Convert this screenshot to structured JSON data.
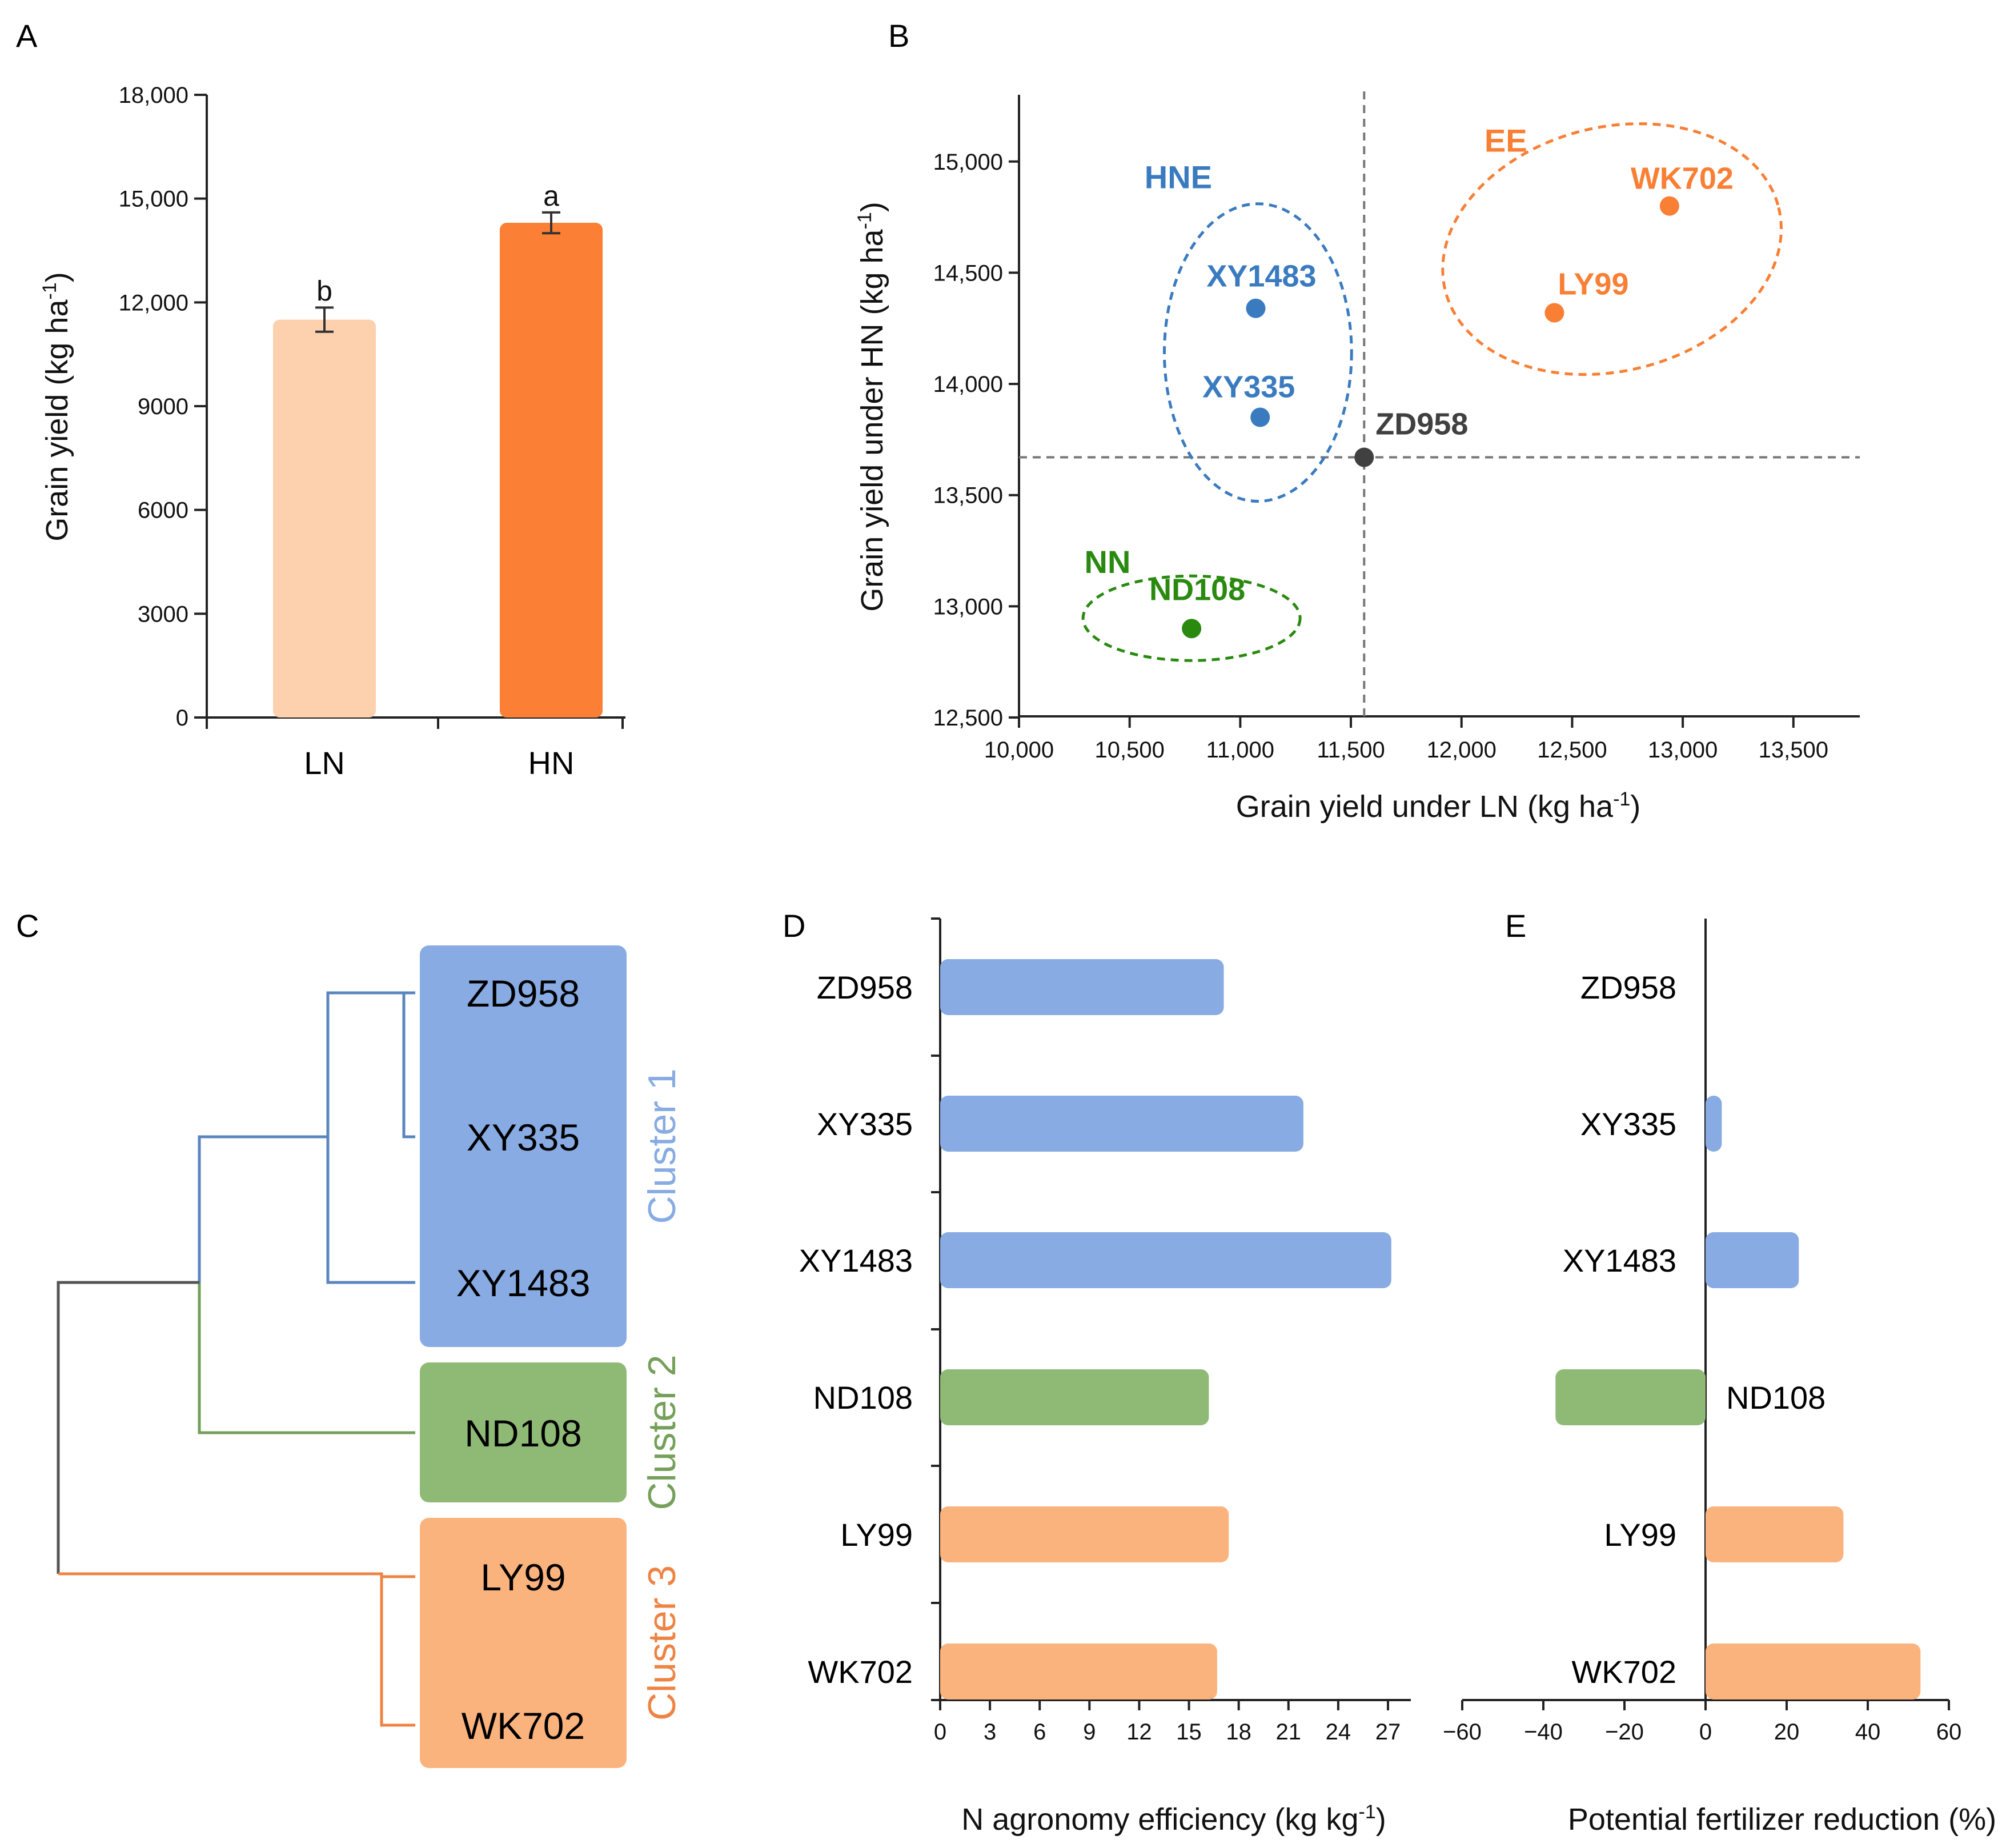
{
  "colors": {
    "ln_bar": "#fdd0ae",
    "hn_bar": "#fb7f34",
    "blue": "#3a7bc0",
    "green": "#2a8a10",
    "orange": "#f97f34",
    "dark": "#404040",
    "cluster1": "#87abe2",
    "cluster2": "#8fba76",
    "cluster3": "#fbb37e",
    "tree_blue": "#5b85be",
    "tree_green": "#74a05a",
    "tree_orange": "#ee8444",
    "tree_gray": "#555555"
  },
  "panels": {
    "a": "A",
    "b": "B",
    "c": "C",
    "d": "D",
    "e": "E"
  },
  "chart_data": [
    {
      "id": "A",
      "type": "bar",
      "categories": [
        "LN",
        "HN"
      ],
      "values": [
        11500,
        14300
      ],
      "errors": [
        350,
        300
      ],
      "significance": [
        "b",
        "a"
      ],
      "ylabel": "Grain yield (kg ha",
      "ylabel_sup": "-1",
      "ylabel_end": ")",
      "ylim": [
        0,
        18000
      ],
      "yticks": [
        0,
        3000,
        6000,
        9000,
        12000,
        15000,
        18000
      ],
      "ytick_labels": [
        "0",
        "3000",
        "6000",
        "9000",
        "12,000",
        "15,000",
        "18,000"
      ]
    },
    {
      "id": "B",
      "type": "scatter",
      "xlabel": "Grain yield under LN (kg ha",
      "xlabel_sup": "-1",
      "xlabel_end": ")",
      "ylabel": "Grain yield under HN (kg ha",
      "ylabel_sup": "-1",
      "ylabel_end": ")",
      "xlim": [
        10000,
        13800
      ],
      "ylim": [
        12500,
        15300
      ],
      "xticks": [
        10000,
        10500,
        11000,
        11500,
        12000,
        12500,
        13000,
        13500
      ],
      "xtick_labels": [
        "10,000",
        "10,500",
        "11,000",
        "11,500",
        "12,000",
        "12,500",
        "13,000",
        "13,500"
      ],
      "yticks": [
        12500,
        13000,
        13500,
        14000,
        14500,
        15000
      ],
      "ytick_labels": [
        "12,500",
        "13,000",
        "13,500",
        "14,000",
        "14,500",
        "15,000"
      ],
      "reference": {
        "x": 11560,
        "y": 13670
      },
      "points": [
        {
          "name": "XY1483",
          "x": 11070,
          "y": 14340,
          "group": "HNE"
        },
        {
          "name": "XY335",
          "x": 11090,
          "y": 13850,
          "group": "HNE"
        },
        {
          "name": "ZD958",
          "x": 11560,
          "y": 13670,
          "group": "ref"
        },
        {
          "name": "ND108",
          "x": 10780,
          "y": 12900,
          "group": "NN"
        },
        {
          "name": "LY99",
          "x": 12420,
          "y": 14320,
          "group": "EE"
        },
        {
          "name": "WK702",
          "x": 12940,
          "y": 14800,
          "group": "EE"
        }
      ],
      "groups": [
        {
          "name": "HNE",
          "x": 10720,
          "y": 14880
        },
        {
          "name": "EE",
          "x": 12200,
          "y": 15045
        },
        {
          "name": "NN",
          "x": 10400,
          "y": 13150
        }
      ]
    },
    {
      "id": "C",
      "type": "dendrogram",
      "leaves": [
        "ZD958",
        "XY335",
        "XY1483",
        "ND108",
        "LY99",
        "WK702"
      ],
      "clusters": [
        {
          "label": "Cluster 1",
          "members": [
            "ZD958",
            "XY335",
            "XY1483"
          ]
        },
        {
          "label": "Cluster 2",
          "members": [
            "ND108"
          ]
        },
        {
          "label": "Cluster 3",
          "members": [
            "LY99",
            "WK702"
          ]
        }
      ]
    },
    {
      "id": "D",
      "type": "bar",
      "orientation": "horizontal",
      "categories": [
        "ZD958",
        "XY335",
        "XY1483",
        "ND108",
        "LY99",
        "WK702"
      ],
      "values": [
        17.1,
        21.9,
        27.2,
        16.2,
        17.4,
        16.7
      ],
      "clusters": [
        1,
        1,
        1,
        2,
        3,
        3
      ],
      "xlabel": "N agronomy efficiency (kg kg",
      "xlabel_sup": "-1",
      "xlabel_end": ")",
      "xlim": [
        0,
        29
      ],
      "xticks": [
        0,
        3,
        6,
        9,
        12,
        15,
        18,
        21,
        24,
        27
      ]
    },
    {
      "id": "E",
      "type": "bar",
      "orientation": "horizontal",
      "categories": [
        "ZD958",
        "XY335",
        "XY1483",
        "ND108",
        "LY99",
        "WK702"
      ],
      "values": [
        0,
        4,
        23,
        -37,
        34,
        53
      ],
      "clusters": [
        1,
        1,
        1,
        2,
        3,
        3
      ],
      "xlabel": "Potential fertilizer reduction (%)",
      "xlim": [
        -60,
        60
      ],
      "xticks": [
        -60,
        -40,
        -20,
        0,
        20,
        40,
        60
      ],
      "xtick_labels": [
        "−60",
        "−40",
        "−20",
        "0",
        "20",
        "40",
        "60"
      ]
    }
  ]
}
